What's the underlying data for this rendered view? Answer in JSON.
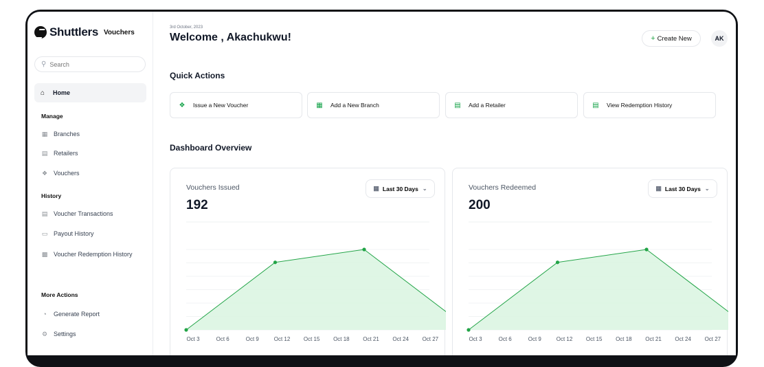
{
  "brand": {
    "name": "Shuttlers",
    "section": "Vouchers"
  },
  "search": {
    "placeholder": "Search"
  },
  "sidebar": {
    "home": "Home",
    "manage_heading": "Manage",
    "manage_items": [
      "Branches",
      "Retailers",
      "Vouchers"
    ],
    "history_heading": "History",
    "history_items": [
      "Voucher Transactions",
      "Payout History",
      "Voucher Redemption History"
    ],
    "more_heading": "More Actions",
    "more_items": [
      "Generate Report",
      "Settings"
    ]
  },
  "header": {
    "date": "3rd October, 2023",
    "welcome": "Welcome , Akachukwu!",
    "create_label": "Create New",
    "avatar_initials": "AK"
  },
  "quick_actions": {
    "title": "Quick Actions",
    "items": [
      "Issue a New Voucher",
      "Add a New Branch",
      "Add a Retailer",
      "View Redemption History"
    ]
  },
  "overview": {
    "title": "Dashboard Overview"
  },
  "colors": {
    "accent": "#22a447",
    "area_fill": "#dcf5e2"
  },
  "chart_data": [
    {
      "type": "area",
      "title": "Vouchers Issued",
      "total": "192",
      "range_label": "Last 30 Days",
      "categories": [
        "Oct 3",
        "Oct 6",
        "Oct 9",
        "Oct 12",
        "Oct 15",
        "Oct 18",
        "Oct 21",
        "Oct 24",
        "Oct 27"
      ],
      "points": [
        {
          "x": 0,
          "y": 0
        },
        {
          "x": 3,
          "y": 84
        },
        {
          "x": 6,
          "y": 100
        },
        {
          "x": 9,
          "y": 16
        }
      ],
      "ylim": [
        0,
        100
      ],
      "grid": true
    },
    {
      "type": "area",
      "title": "Vouchers Redeemed",
      "total": "200",
      "range_label": "Last 30 Days",
      "categories": [
        "Oct 3",
        "Oct 6",
        "Oct 9",
        "Oct 12",
        "Oct 15",
        "Oct 18",
        "Oct 21",
        "Oct 24",
        "Oct 27"
      ],
      "points": [
        {
          "x": 0,
          "y": 0
        },
        {
          "x": 3,
          "y": 84
        },
        {
          "x": 6,
          "y": 100
        },
        {
          "x": 9,
          "y": 16
        }
      ],
      "ylim": [
        0,
        100
      ],
      "grid": true
    }
  ]
}
